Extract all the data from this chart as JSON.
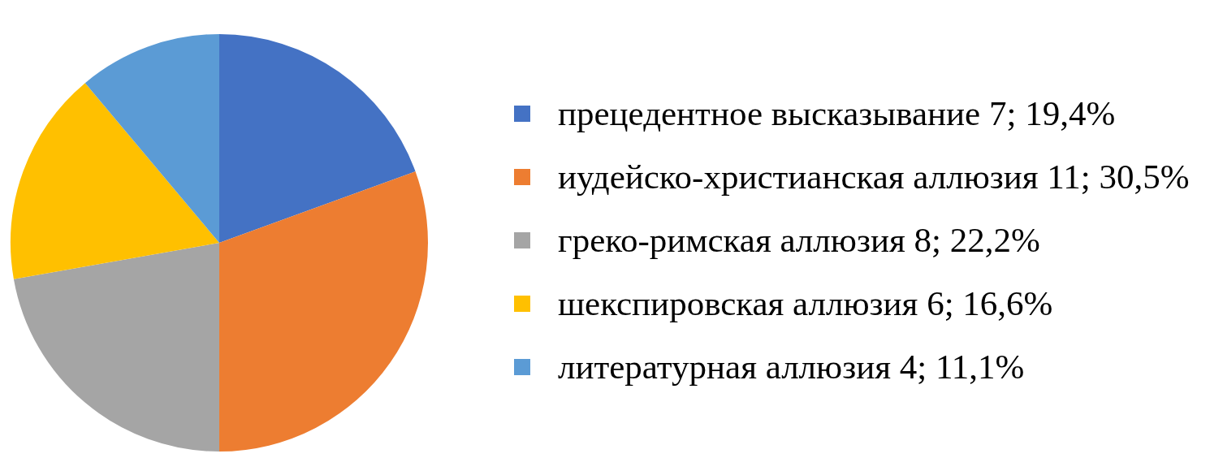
{
  "chart_data": {
    "type": "pie",
    "categories": [
      "прецедентное высказывание",
      "иудейско-христианская аллюзия",
      "греко-римская аллюзия",
      "шекспировская аллюзия",
      "литературная аллюзия"
    ],
    "values": [
      7,
      11,
      8,
      6,
      4
    ],
    "value_labels": [
      "7; 19,4%",
      "11; 30,5%",
      "8; 22,2%",
      "6; 16,6%",
      "4; 11,1%"
    ],
    "colors": [
      "#4472c4",
      "#ed7d31",
      "#a5a5a5",
      "#ffc000",
      "#5b9bd5"
    ],
    "legend": "right"
  }
}
